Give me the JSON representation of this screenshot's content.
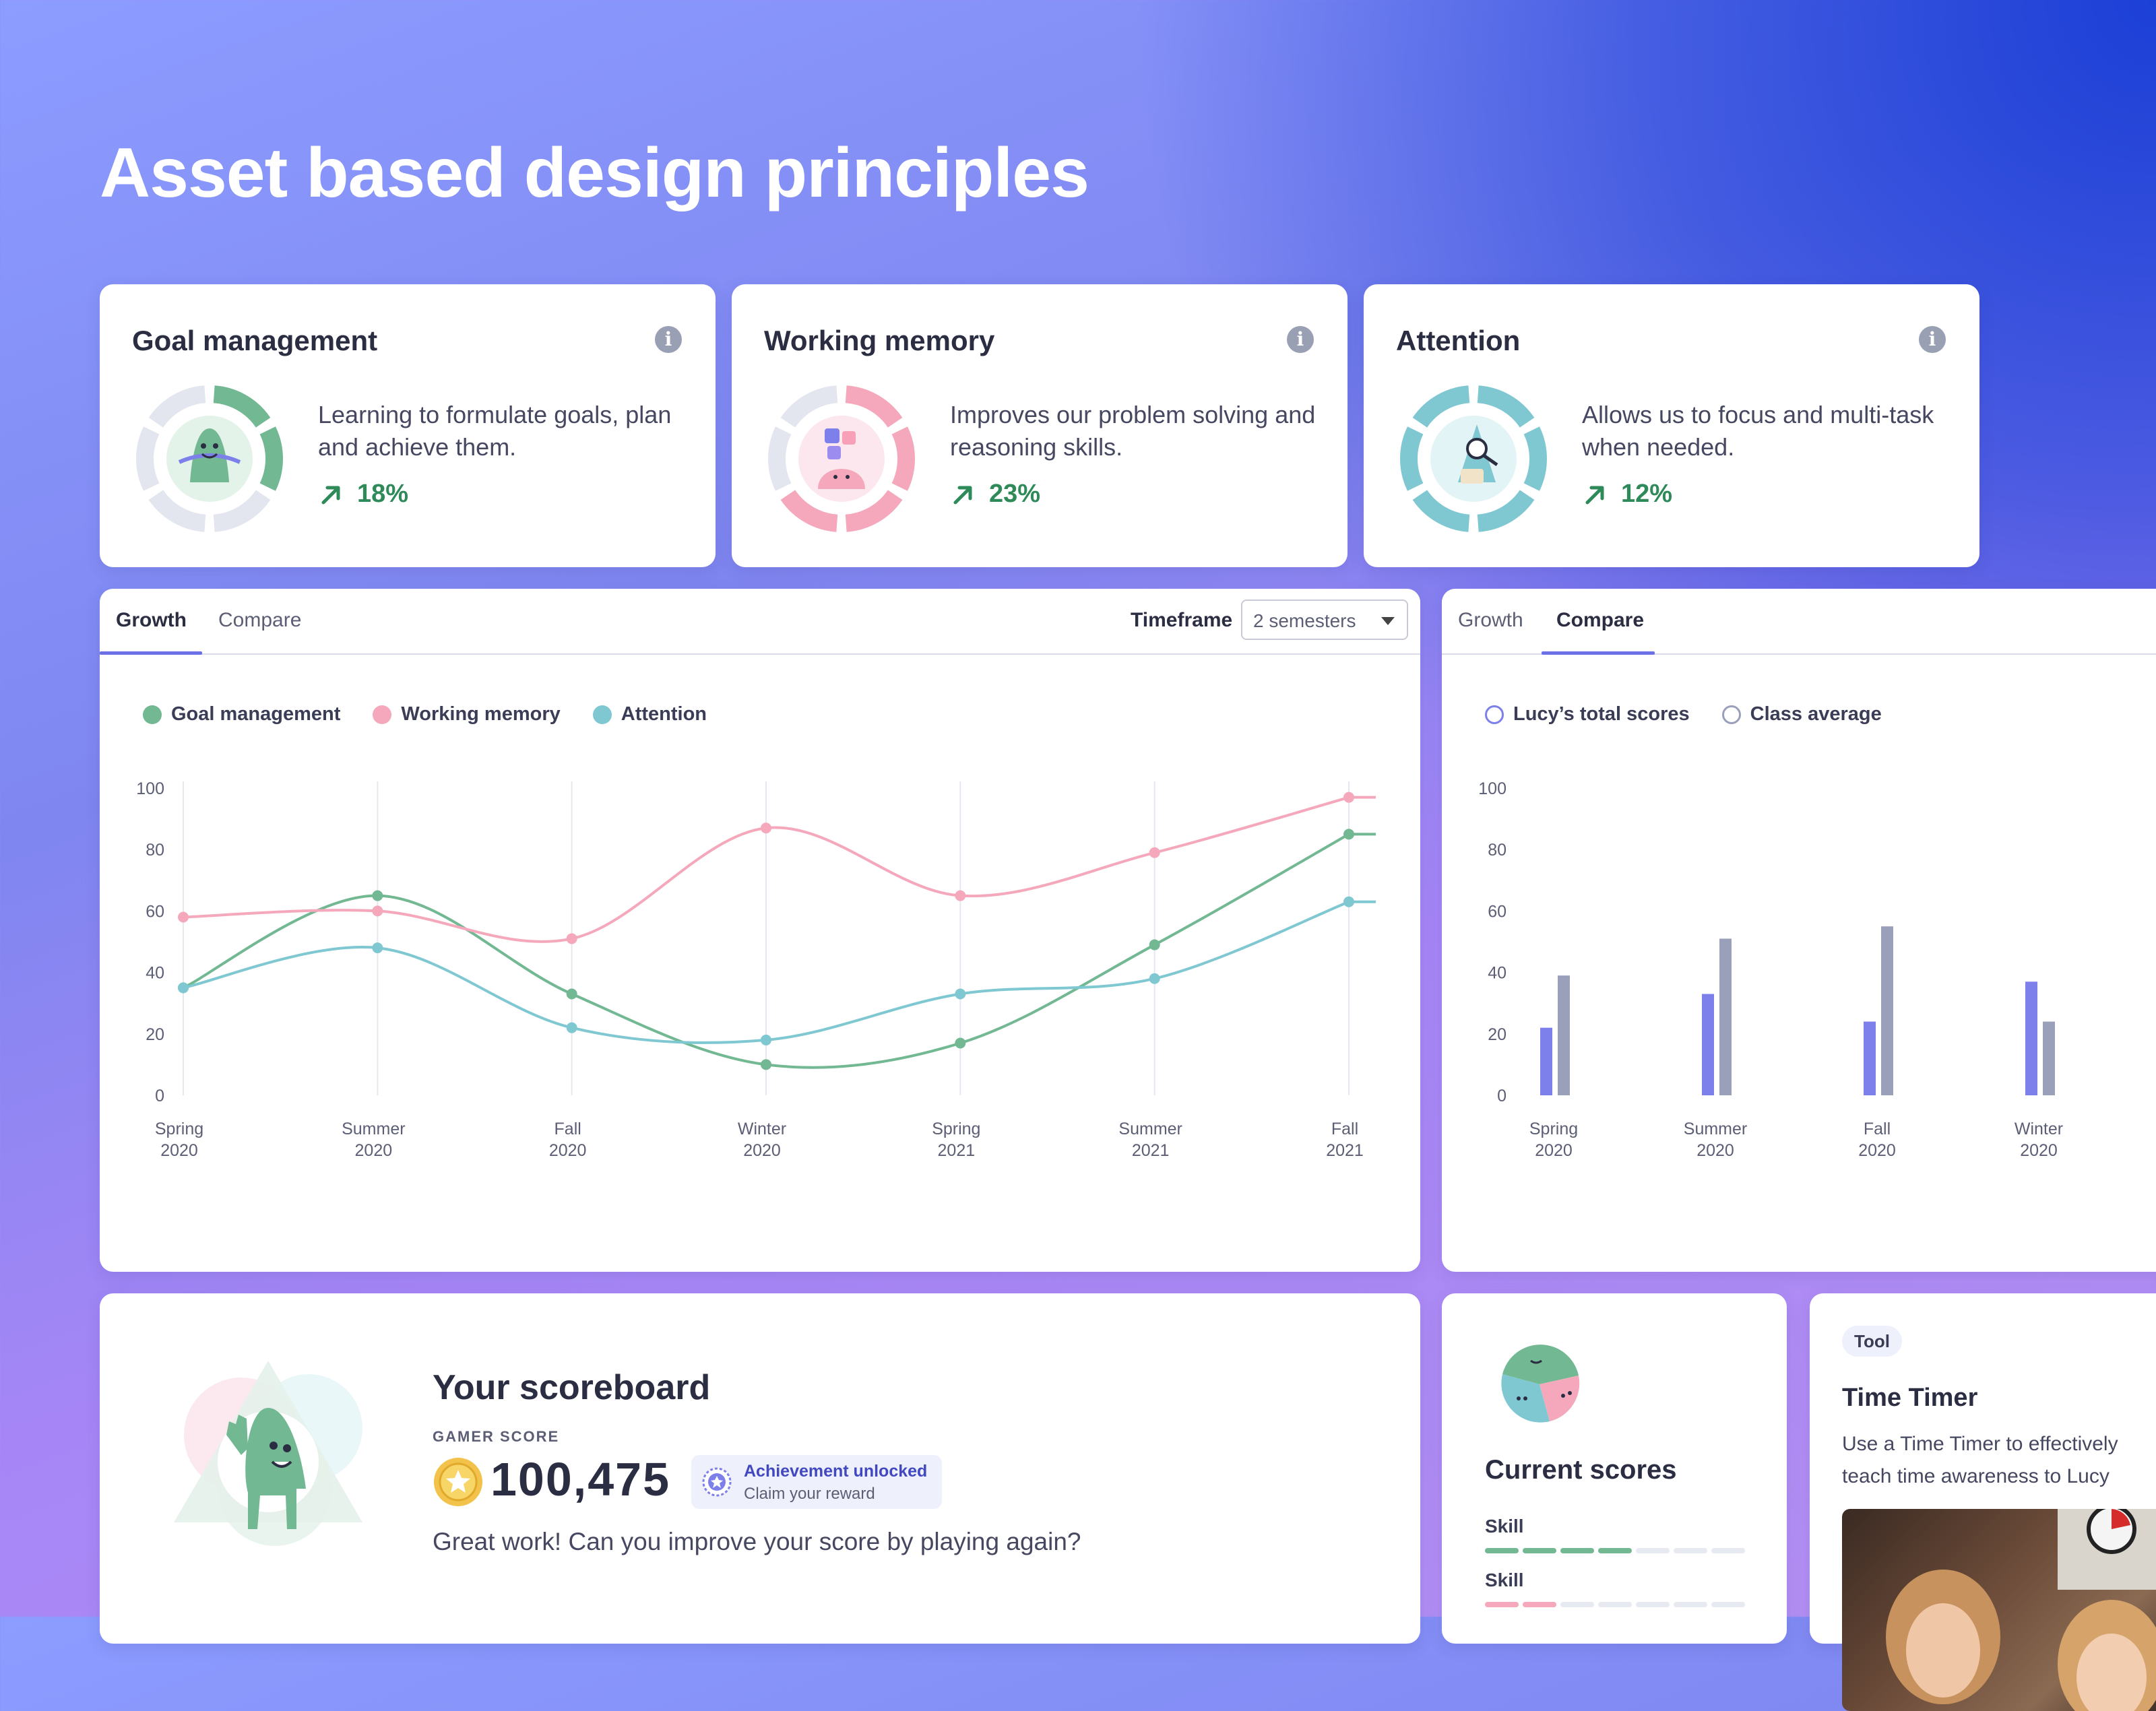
{
  "page": {
    "title": "Asset based design principles"
  },
  "colors": {
    "goal": "#72b892",
    "memory": "#f5a8bb",
    "attention": "#7fc8d2",
    "student": "#7d7fea",
    "class": "#9aa0ba"
  },
  "skills": [
    {
      "name": "Goal management",
      "description": "Learning to formulate goals, plan and achieve them.",
      "change": "18%",
      "filled_segments": 2,
      "icon": "goal-character-icon"
    },
    {
      "name": "Working memory",
      "description": "Improves our problem solving and reasoning skills.",
      "change": "23%",
      "filled_segments": 4,
      "icon": "puzzle-character-icon"
    },
    {
      "name": "Attention",
      "description": "Allows us to focus and multi-task when needed.",
      "change": "12%",
      "filled_segments": 6,
      "icon": "magnifier-character-icon"
    }
  ],
  "growth_panel": {
    "tabs": [
      "Growth",
      "Compare"
    ],
    "active_tab": "Growth",
    "timeframe_label": "Timeframe",
    "timeframe_value": "2 semesters"
  },
  "compare_panel": {
    "tabs": [
      "Growth",
      "Compare"
    ],
    "active_tab": "Compare"
  },
  "chart_data": [
    {
      "type": "line",
      "categories": [
        "Spring 2020",
        "Summer 2020",
        "Fall 2020",
        "Winter 2020",
        "Spring 2021",
        "Summer 2021",
        "Fall 2021"
      ],
      "ylim": [
        0,
        100
      ],
      "yticks": [
        0,
        20,
        40,
        60,
        80,
        100
      ],
      "grid": "vertical",
      "legend": "top-left",
      "series": [
        {
          "name": "Goal management",
          "values": [
            35,
            65,
            33,
            10,
            17,
            49,
            85
          ]
        },
        {
          "name": "Working memory",
          "values": [
            58,
            60,
            51,
            87,
            65,
            79,
            97
          ]
        },
        {
          "name": "Attention",
          "values": [
            35,
            48,
            22,
            18,
            33,
            38,
            63
          ]
        }
      ]
    },
    {
      "type": "bar",
      "categories": [
        "Spring 2020",
        "Summer 2020",
        "Fall 2020",
        "Winter 2020"
      ],
      "ylim": [
        0,
        100
      ],
      "yticks": [
        0,
        20,
        40,
        60,
        80,
        100
      ],
      "legend": "top-left",
      "series": [
        {
          "name": "Lucy’s total scores",
          "values": [
            22,
            33,
            24,
            37
          ]
        },
        {
          "name": "Class average",
          "values": [
            39,
            51,
            55,
            24
          ]
        }
      ]
    }
  ],
  "scoreboard": {
    "title": "Your scoreboard",
    "label": "GAMER SCORE",
    "score": "100,475",
    "achievement_title": "Achievement unlocked",
    "achievement_sub": "Claim your reward",
    "message": "Great work! Can you improve your score by playing again?"
  },
  "current_scores": {
    "title": "Current scores",
    "skills": [
      {
        "label": "Skill",
        "level": 0.57,
        "color": "#72b892"
      },
      {
        "label": "Skill",
        "level": 0.29,
        "color": "#f5a8bb"
      }
    ]
  },
  "tool": {
    "badge": "Tool",
    "title": "Time Timer",
    "description": "Use a Time Timer to effectively teach time awareness to Lucy"
  }
}
